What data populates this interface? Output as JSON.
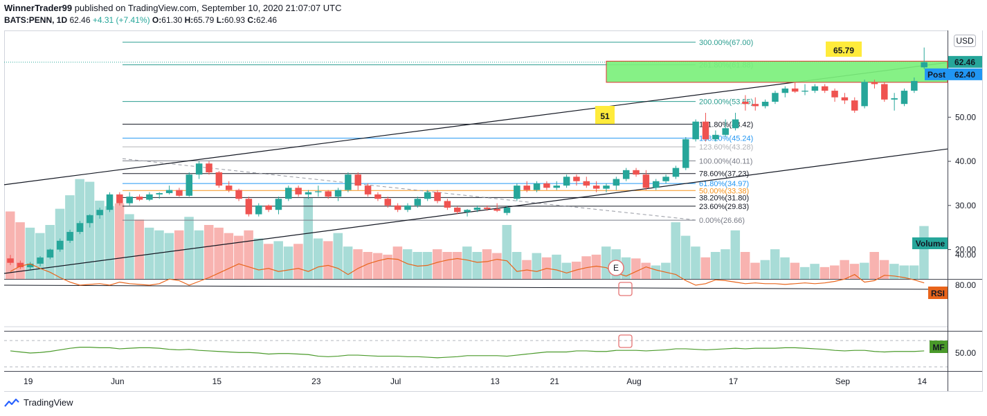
{
  "header": {
    "publisher": "WinnerTrader99",
    "published_text": "published on TradingView.com, September 10, 2020 21:07:07 UTC",
    "symbol": "BATS:PENN, 1D",
    "last": "62.46",
    "change": "+4.31 (+7.41%)",
    "o_label": "O:",
    "o": "61.30",
    "h_label": "H:",
    "h": "65.79",
    "l_label": "L:",
    "l": "60.93",
    "c_label": "C:",
    "c": "62.46"
  },
  "currency": "USD",
  "footer": {
    "brand": "TradingView"
  },
  "colors": {
    "up": "#26a69a",
    "down": "#ef5350",
    "rsi": "#e8641b",
    "mf": "#4a9a2a",
    "zone": "#7cf07c"
  },
  "annotations": {
    "high_label": "65.79",
    "mark_label": "51",
    "earnings": "E"
  },
  "price_badges": {
    "last": "62.46",
    "post_label": "Post",
    "post": "62.40"
  },
  "pane_labels": {
    "volume": "Volume",
    "rsi": "RSI",
    "mf": "MF"
  },
  "chart_data": {
    "type": "candlestick",
    "price_axis": {
      "ticks": [
        20.0,
        30.0,
        40.0,
        50.0
      ],
      "labels": [
        "20.00",
        "30.00",
        "40.00",
        "50.00"
      ],
      "range": [
        13.5,
        69.5
      ]
    },
    "rsi_axis": {
      "labels": [
        "80.00",
        "40.00"
      ],
      "values": [
        80,
        40
      ]
    },
    "mf_axis": {
      "labels": [
        "50.00"
      ],
      "values": [
        50
      ]
    },
    "x_labels": [
      "19",
      "Jun",
      "15",
      "23",
      "Jul",
      "13",
      "21",
      "Aug",
      "17",
      "Sep",
      "14"
    ],
    "x_label_bar_index": [
      2,
      11,
      21,
      31,
      39,
      49,
      55,
      63,
      73,
      84,
      92
    ],
    "fib_levels": [
      {
        "label": "300.00%(67.00)",
        "value": 67.0,
        "color": "#2a9d8f"
      },
      {
        "label": "261.80%(61.88)",
        "value": 61.88,
        "color": "#2a9d8f"
      },
      {
        "label": "200.00%(53.55)",
        "value": 53.55,
        "color": "#2a9d8f"
      },
      {
        "label": "161.80%(48.42)",
        "value": 48.42,
        "color": "#131722"
      },
      {
        "label": "138.20%(45.24)",
        "value": 45.24,
        "color": "#2196f3"
      },
      {
        "label": "123.60%(43.28)",
        "value": 43.28,
        "color": "#b0b3b8"
      },
      {
        "label": "100.00%(40.11)",
        "value": 40.11,
        "color": "#787b86"
      },
      {
        "label": "78.60%(37.23)",
        "value": 37.23,
        "color": "#131722"
      },
      {
        "label": "61.80%(34.97)",
        "value": 34.97,
        "color": "#2196f3"
      },
      {
        "label": "50.00%(33.38)",
        "value": 33.38,
        "color": "#f7931a"
      },
      {
        "label": "38.20%(31.80)",
        "value": 31.8,
        "color": "#131722"
      },
      {
        "label": "23.60%(29.83)",
        "value": 29.83,
        "color": "#131722"
      },
      {
        "label": "0.00%(26.66)",
        "value": 26.66,
        "color": "#787b86"
      }
    ],
    "ohlc": [
      [
        18.0,
        18.8,
        16.5,
        17.0
      ],
      [
        17.0,
        17.5,
        15.6,
        16.0
      ],
      [
        16.0,
        17.2,
        15.5,
        16.8
      ],
      [
        16.8,
        18.5,
        16.2,
        18.2
      ],
      [
        18.2,
        20.2,
        17.8,
        20.0
      ],
      [
        20.0,
        22.5,
        19.5,
        22.0
      ],
      [
        22.0,
        24.5,
        21.5,
        24.0
      ],
      [
        24.0,
        26.5,
        23.5,
        26.0
      ],
      [
        26.0,
        28.0,
        25.0,
        27.8
      ],
      [
        27.8,
        29.5,
        27.0,
        29.0
      ],
      [
        29.0,
        33.0,
        28.5,
        32.5
      ],
      [
        32.5,
        33.0,
        30.0,
        30.5
      ],
      [
        30.5,
        33.0,
        30.0,
        32.0
      ],
      [
        32.0,
        32.5,
        31.0,
        31.3
      ],
      [
        31.3,
        33.0,
        31.0,
        32.5
      ],
      [
        32.5,
        33.0,
        31.5,
        32.8
      ],
      [
        32.8,
        34.5,
        32.5,
        33.5
      ],
      [
        33.5,
        34.0,
        32.0,
        32.2
      ],
      [
        32.2,
        37.5,
        32.0,
        37.0
      ],
      [
        37.0,
        40.0,
        36.0,
        39.5
      ],
      [
        39.5,
        40.0,
        37.0,
        37.5
      ],
      [
        37.5,
        37.8,
        34.0,
        34.5
      ],
      [
        34.5,
        35.5,
        33.0,
        33.5
      ],
      [
        33.5,
        33.8,
        31.0,
        31.5
      ],
      [
        31.5,
        32.0,
        27.5,
        28.0
      ],
      [
        28.0,
        30.5,
        27.5,
        30.0
      ],
      [
        30.0,
        30.2,
        28.5,
        29.0
      ],
      [
        29.0,
        32.0,
        28.0,
        31.5
      ],
      [
        31.5,
        34.5,
        31.0,
        34.0
      ],
      [
        34.0,
        34.5,
        32.0,
        32.5
      ],
      [
        32.5,
        33.5,
        31.5,
        33.0
      ],
      [
        33.0,
        34.5,
        32.0,
        33.2
      ],
      [
        33.2,
        33.5,
        31.5,
        32.0
      ],
      [
        32.0,
        34.0,
        31.0,
        33.5
      ],
      [
        33.5,
        37.5,
        33.0,
        37.0
      ],
      [
        37.0,
        37.5,
        33.5,
        34.5
      ],
      [
        34.5,
        35.0,
        32.0,
        32.5
      ],
      [
        32.5,
        33.0,
        31.0,
        31.5
      ],
      [
        31.5,
        32.0,
        29.5,
        30.0
      ],
      [
        30.0,
        30.5,
        28.5,
        29.0
      ],
      [
        29.0,
        30.5,
        28.5,
        30.0
      ],
      [
        30.0,
        32.0,
        29.5,
        31.5
      ],
      [
        31.5,
        33.5,
        31.0,
        33.0
      ],
      [
        33.0,
        33.5,
        30.5,
        31.0
      ],
      [
        31.0,
        31.5,
        29.0,
        29.5
      ],
      [
        29.5,
        29.8,
        28.0,
        28.5
      ],
      [
        28.5,
        29.2,
        27.5,
        29.0
      ],
      [
        29.0,
        30.0,
        28.5,
        29.5
      ],
      [
        29.5,
        30.0,
        28.8,
        29.2
      ],
      [
        29.2,
        30.5,
        28.5,
        28.8
      ],
      [
        28.3,
        30.0,
        27.8,
        29.5
      ],
      [
        31.5,
        35.0,
        31.0,
        34.5
      ],
      [
        34.5,
        35.5,
        33.0,
        33.5
      ],
      [
        33.5,
        35.5,
        33.0,
        35.0
      ],
      [
        35.0,
        35.5,
        33.5,
        34.0
      ],
      [
        34.0,
        35.5,
        33.5,
        34.5
      ],
      [
        34.5,
        37.0,
        34.0,
        36.5
      ],
      [
        36.5,
        37.0,
        34.5,
        35.5
      ],
      [
        35.5,
        36.5,
        34.0,
        34.5
      ],
      [
        34.5,
        35.5,
        33.0,
        33.8
      ],
      [
        33.8,
        35.0,
        33.0,
        34.5
      ],
      [
        34.5,
        36.5,
        33.5,
        36.0
      ],
      [
        36.0,
        38.5,
        35.5,
        38.0
      ],
      [
        38.0,
        38.5,
        36.5,
        37.0
      ],
      [
        37.0,
        38.0,
        33.5,
        34.0
      ],
      [
        34.0,
        36.0,
        33.5,
        35.5
      ],
      [
        35.5,
        37.0,
        35.0,
        36.5
      ],
      [
        36.5,
        39.0,
        36.0,
        38.5
      ],
      [
        38.5,
        45.5,
        38.0,
        45.0
      ],
      [
        45.0,
        49.5,
        44.5,
        49.0
      ],
      [
        49.0,
        51.0,
        44.5,
        45.0
      ],
      [
        45.0,
        47.0,
        44.5,
        46.0
      ],
      [
        46.0,
        49.5,
        45.5,
        47.5
      ],
      [
        47.5,
        51.0,
        47.0,
        49.5
      ],
      [
        53.5,
        55.0,
        51.5,
        53.0
      ],
      [
        53.0,
        54.5,
        51.5,
        52.5
      ],
      [
        52.5,
        54.0,
        52.0,
        53.5
      ],
      [
        53.5,
        56.0,
        53.0,
        55.5
      ],
      [
        55.5,
        57.0,
        54.5,
        56.5
      ],
      [
        56.5,
        58.0,
        55.5,
        55.8
      ],
      [
        55.8,
        57.5,
        55.0,
        56.0
      ],
      [
        56.0,
        57.5,
        55.5,
        57.0
      ],
      [
        57.0,
        57.5,
        55.5,
        56.0
      ],
      [
        56.0,
        56.5,
        53.5,
        54.5
      ],
      [
        54.5,
        55.5,
        53.0,
        53.8
      ],
      [
        53.8,
        54.5,
        51.0,
        51.5
      ],
      [
        52.5,
        58.5,
        52.0,
        58.0
      ],
      [
        58.0,
        58.5,
        56.5,
        57.5
      ],
      [
        57.5,
        58.0,
        53.5,
        54.0
      ],
      [
        54.0,
        55.5,
        51.5,
        54.3
      ],
      [
        53.0,
        56.5,
        52.5,
        56.0
      ],
      [
        56.0,
        59.0,
        55.5,
        58.2
      ],
      [
        61.3,
        65.79,
        60.93,
        62.46
      ]
    ],
    "volume": [
      1.25,
      1.05,
      0.95,
      0.85,
      1.0,
      1.3,
      1.55,
      1.85,
      1.8,
      1.45,
      1.35,
      1.4,
      1.2,
      1.1,
      0.95,
      0.9,
      0.85,
      0.9,
      1.15,
      0.9,
      1.0,
      0.95,
      0.85,
      0.8,
      0.9,
      0.75,
      0.65,
      0.7,
      0.6,
      0.65,
      1.5,
      0.75,
      0.7,
      0.85,
      0.6,
      0.55,
      0.5,
      0.48,
      0.45,
      0.6,
      0.55,
      0.5,
      0.5,
      0.55,
      0.5,
      0.5,
      0.6,
      0.5,
      0.55,
      0.48,
      1.0,
      0.5,
      0.35,
      0.48,
      0.4,
      0.45,
      0.3,
      0.32,
      0.42,
      0.45,
      0.6,
      0.55,
      0.4,
      0.38,
      0.3,
      0.25,
      0.3,
      1.05,
      0.8,
      0.6,
      0.4,
      0.5,
      0.55,
      0.9,
      0.5,
      0.3,
      0.35,
      0.55,
      0.4,
      0.3,
      0.22,
      0.28,
      0.22,
      0.25,
      0.35,
      0.28,
      0.3,
      0.5,
      0.35,
      0.28,
      0.25,
      0.25,
      0.98
    ],
    "rsi": [
      62,
      55,
      52,
      58,
      63,
      70,
      76,
      80,
      79,
      78,
      80,
      76,
      78,
      79,
      80,
      78,
      72,
      74,
      80,
      75,
      70,
      64,
      58,
      52,
      56,
      60,
      58,
      62,
      60,
      58,
      62,
      56,
      54,
      58,
      66,
      58,
      52,
      48,
      45,
      46,
      52,
      55,
      54,
      50,
      47,
      45,
      47,
      50,
      49,
      46,
      48,
      62,
      60,
      62,
      58,
      60,
      64,
      60,
      57,
      55,
      57,
      64,
      68,
      62,
      56,
      60,
      63,
      66,
      74,
      80,
      78,
      73,
      74,
      76,
      78,
      77,
      78,
      78,
      79,
      78,
      77,
      78,
      77,
      75,
      72,
      66,
      76,
      74,
      67,
      68,
      70,
      73,
      77
    ],
    "mf": [
      58,
      54,
      50,
      52,
      56,
      62,
      68,
      72,
      72,
      70,
      70,
      66,
      68,
      70,
      70,
      68,
      64,
      62,
      64,
      60,
      58,
      56,
      54,
      52,
      52,
      50,
      46,
      48,
      48,
      46,
      44,
      38,
      36,
      38,
      42,
      42,
      40,
      38,
      38,
      38,
      36,
      36,
      34,
      32,
      34,
      36,
      40,
      40,
      40,
      40,
      38,
      42,
      46,
      50,
      54,
      54,
      54,
      58,
      58,
      56,
      56,
      60,
      60,
      60,
      58,
      60,
      62,
      66,
      66,
      64,
      62,
      64,
      66,
      68,
      66,
      68,
      68,
      68,
      70,
      70,
      68,
      66,
      64,
      60,
      58,
      60,
      60,
      56,
      54,
      56,
      56,
      56,
      58
    ]
  }
}
